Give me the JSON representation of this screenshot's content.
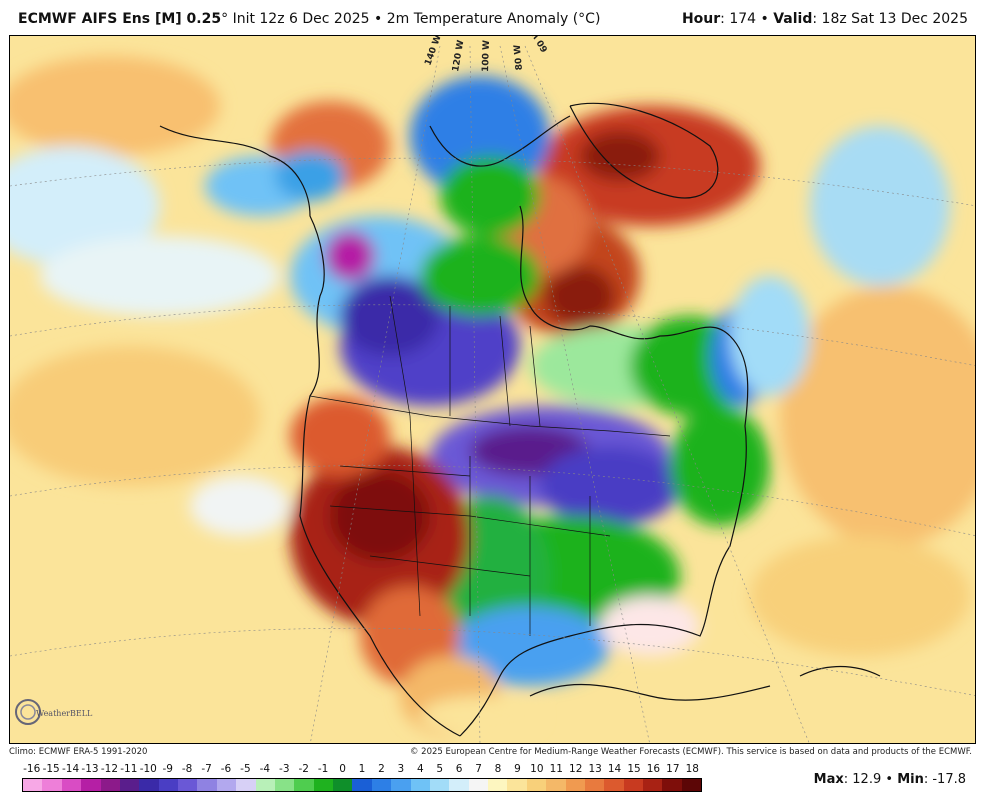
{
  "header": {
    "model": "ECMWF AIFS Ens [M] 0.25",
    "degree": "°",
    "init": "Init 12z 6 Dec 2025",
    "sep": "•",
    "field": "2m Temperature Anomaly (°C)",
    "hour_label": "Hour",
    "hour_value": ": 174",
    "valid_label": "Valid",
    "valid_value": ": 18z Sat 13 Dec 2025"
  },
  "footer": {
    "climo": "Climo: ECMWF ERA-5 1991-2020",
    "copyright": "© 2025 European Centre for Medium-Range Weather Forecasts (ECMWF). This service is based on data and products of the ECMWF."
  },
  "stats": {
    "max_label": "Max",
    "max_value": ": 12.9",
    "sep": "•",
    "min_label": "Min",
    "min_value": ": -17.8"
  },
  "longitude_labels": [
    "140 W",
    "120 W",
    "100 W",
    "80 W",
    "60 W"
  ],
  "logo_text": "WeatherBELL",
  "colorbar": {
    "labels": [
      "-16",
      "-15",
      "-14",
      "-13",
      "-12",
      "-11",
      "-10",
      "-9",
      "-8",
      "-7",
      "-6",
      "-5",
      "-4",
      "-3",
      "-2",
      "-1",
      "0",
      "1",
      "2",
      "3",
      "4",
      "5",
      "6",
      "7",
      "8",
      "9",
      "10",
      "11",
      "12",
      "13",
      "14",
      "15",
      "16",
      "17",
      "18"
    ],
    "colors": [
      "#f7a8e6",
      "#ee7fd9",
      "#d94cc4",
      "#b51fa5",
      "#8c1a8a",
      "#5a1e8c",
      "#3a2aa8",
      "#4a3ec4",
      "#6a58d6",
      "#8f82e2",
      "#b2a8ee",
      "#d7d0f6",
      "#b8f0b8",
      "#88e288",
      "#4fcd4f",
      "#1fb21f",
      "#0f8f2a",
      "#1a5fd6",
      "#2d7fe6",
      "#4aa0f0",
      "#6fc2f6",
      "#a2dcf8",
      "#d3eefa",
      "#f5f5f5",
      "#fdf6c0",
      "#fbe49a",
      "#f8d07a",
      "#f4b868",
      "#f09a50",
      "#e87a3e",
      "#dc5a2e",
      "#c83a20",
      "#a82214",
      "#7e0e0a",
      "#5c0606"
    ]
  }
}
